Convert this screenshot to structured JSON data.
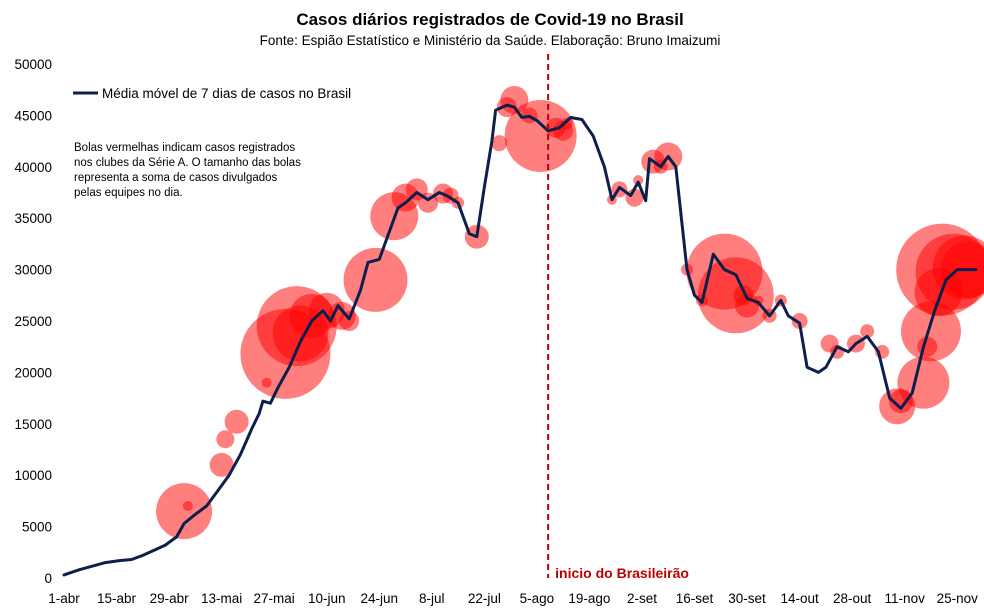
{
  "chart_data": {
    "type": "line",
    "title": "Casos diários registrados de Covid-19 no Brasil",
    "subtitle": "Fonte: Espião Estatístico e Ministério da Saúde. Elaboração: Bruno Imaizumi",
    "legend_position": "top-left",
    "grid": false,
    "ylim": [
      0,
      50000
    ],
    "y_ticks": [
      0,
      5000,
      10000,
      15000,
      20000,
      25000,
      30000,
      35000,
      40000,
      45000,
      50000
    ],
    "x_range": [
      "2020-04-01",
      "2020-11-30"
    ],
    "x_ticks": [
      {
        "date": "2020-04-01",
        "label": "1-abr"
      },
      {
        "date": "2020-04-15",
        "label": "15-abr"
      },
      {
        "date": "2020-04-29",
        "label": "29-abr"
      },
      {
        "date": "2020-05-13",
        "label": "13-mai"
      },
      {
        "date": "2020-05-27",
        "label": "27-mai"
      },
      {
        "date": "2020-06-10",
        "label": "10-jun"
      },
      {
        "date": "2020-06-24",
        "label": "24-jun"
      },
      {
        "date": "2020-07-08",
        "label": "8-jul"
      },
      {
        "date": "2020-07-22",
        "label": "22-jul"
      },
      {
        "date": "2020-08-05",
        "label": "5-ago"
      },
      {
        "date": "2020-08-19",
        "label": "19-ago"
      },
      {
        "date": "2020-09-02",
        "label": "2-set"
      },
      {
        "date": "2020-09-16",
        "label": "16-set"
      },
      {
        "date": "2020-09-30",
        "label": "30-set"
      },
      {
        "date": "2020-10-14",
        "label": "14-out"
      },
      {
        "date": "2020-10-28",
        "label": "28-out"
      },
      {
        "date": "2020-11-11",
        "label": "11-nov"
      },
      {
        "date": "2020-11-25",
        "label": "25-nov"
      }
    ],
    "series": [
      {
        "name": "Média móvel de 7 dias de casos no Brasil",
        "color": "#0d1f4c",
        "points": [
          [
            "2020-04-01",
            300
          ],
          [
            "2020-04-05",
            800
          ],
          [
            "2020-04-09",
            1200
          ],
          [
            "2020-04-12",
            1500
          ],
          [
            "2020-04-16",
            1700
          ],
          [
            "2020-04-19",
            1800
          ],
          [
            "2020-04-22",
            2200
          ],
          [
            "2020-04-25",
            2700
          ],
          [
            "2020-04-28",
            3200
          ],
          [
            "2020-05-01",
            4000
          ],
          [
            "2020-05-03",
            5300
          ],
          [
            "2020-05-06",
            6200
          ],
          [
            "2020-05-09",
            7000
          ],
          [
            "2020-05-12",
            8500
          ],
          [
            "2020-05-15",
            10000
          ],
          [
            "2020-05-18",
            12000
          ],
          [
            "2020-05-21",
            14500
          ],
          [
            "2020-05-23",
            16000
          ],
          [
            "2020-05-24",
            17200
          ],
          [
            "2020-05-26",
            17000
          ],
          [
            "2020-05-28",
            18500
          ],
          [
            "2020-05-31",
            20500
          ],
          [
            "2020-06-03",
            23000
          ],
          [
            "2020-06-06",
            25000
          ],
          [
            "2020-06-09",
            26000
          ],
          [
            "2020-06-11",
            25000
          ],
          [
            "2020-06-13",
            26500
          ],
          [
            "2020-06-16",
            25200
          ],
          [
            "2020-06-19",
            28000
          ],
          [
            "2020-06-21",
            30700
          ],
          [
            "2020-06-24",
            31000
          ],
          [
            "2020-06-27",
            34000
          ],
          [
            "2020-06-29",
            36000
          ],
          [
            "2020-07-01",
            36500
          ],
          [
            "2020-07-04",
            37500
          ],
          [
            "2020-07-07",
            36800
          ],
          [
            "2020-07-10",
            37500
          ],
          [
            "2020-07-12",
            37200
          ],
          [
            "2020-07-15",
            36500
          ],
          [
            "2020-07-18",
            33500
          ],
          [
            "2020-07-20",
            33200
          ],
          [
            "2020-07-22",
            38000
          ],
          [
            "2020-07-24",
            42500
          ],
          [
            "2020-07-25",
            45500
          ],
          [
            "2020-07-28",
            46000
          ],
          [
            "2020-07-30",
            45800
          ],
          [
            "2020-08-01",
            44800
          ],
          [
            "2020-08-03",
            44900
          ],
          [
            "2020-08-05",
            44500
          ],
          [
            "2020-08-08",
            43500
          ],
          [
            "2020-08-11",
            43800
          ],
          [
            "2020-08-14",
            44800
          ],
          [
            "2020-08-17",
            44600
          ],
          [
            "2020-08-20",
            43000
          ],
          [
            "2020-08-23",
            40000
          ],
          [
            "2020-08-25",
            36800
          ],
          [
            "2020-08-27",
            38000
          ],
          [
            "2020-08-30",
            37200
          ],
          [
            "2020-09-01",
            38500
          ],
          [
            "2020-09-03",
            36700
          ],
          [
            "2020-09-04",
            40800
          ],
          [
            "2020-09-07",
            40000
          ],
          [
            "2020-09-09",
            41000
          ],
          [
            "2020-09-11",
            40000
          ],
          [
            "2020-09-14",
            30000
          ],
          [
            "2020-09-16",
            27500
          ],
          [
            "2020-09-18",
            26800
          ],
          [
            "2020-09-21",
            31500
          ],
          [
            "2020-09-24",
            30000
          ],
          [
            "2020-09-27",
            29500
          ],
          [
            "2020-09-30",
            27200
          ],
          [
            "2020-10-03",
            26800
          ],
          [
            "2020-10-06",
            25500
          ],
          [
            "2020-10-09",
            27000
          ],
          [
            "2020-10-11",
            25500
          ],
          [
            "2020-10-14",
            24800
          ],
          [
            "2020-10-16",
            20500
          ],
          [
            "2020-10-19",
            20000
          ],
          [
            "2020-10-21",
            20500
          ],
          [
            "2020-10-24",
            22500
          ],
          [
            "2020-10-27",
            22000
          ],
          [
            "2020-10-29",
            22800
          ],
          [
            "2020-11-01",
            23500
          ],
          [
            "2020-11-04",
            22000
          ],
          [
            "2020-11-07",
            17500
          ],
          [
            "2020-11-10",
            16500
          ],
          [
            "2020-11-13",
            18000
          ],
          [
            "2020-11-16",
            22500
          ],
          [
            "2020-11-19",
            26000
          ],
          [
            "2020-11-22",
            29000
          ],
          [
            "2020-11-25",
            30000
          ],
          [
            "2020-11-30",
            30000
          ]
        ]
      }
    ],
    "bubbles_color": "#ff0000",
    "bubbles": [
      {
        "date": "2020-05-03",
        "value": 6500,
        "size": 28
      },
      {
        "date": "2020-05-04",
        "value": 7000,
        "size": 5
      },
      {
        "date": "2020-05-13",
        "value": 11000,
        "size": 12
      },
      {
        "date": "2020-05-14",
        "value": 13500,
        "size": 9
      },
      {
        "date": "2020-05-17",
        "value": 15200,
        "size": 12
      },
      {
        "date": "2020-05-25",
        "value": 19000,
        "size": 5
      },
      {
        "date": "2020-05-30",
        "value": 21800,
        "size": 45
      },
      {
        "date": "2020-06-02",
        "value": 24500,
        "size": 40
      },
      {
        "date": "2020-06-03",
        "value": 23800,
        "size": 28
      },
      {
        "date": "2020-06-06",
        "value": 25500,
        "size": 22
      },
      {
        "date": "2020-06-10",
        "value": 26000,
        "size": 18
      },
      {
        "date": "2020-06-14",
        "value": 25500,
        "size": 14
      },
      {
        "date": "2020-06-16",
        "value": 25000,
        "size": 10
      },
      {
        "date": "2020-06-23",
        "value": 29000,
        "size": 32
      },
      {
        "date": "2020-06-28",
        "value": 35200,
        "size": 24
      },
      {
        "date": "2020-07-01",
        "value": 37000,
        "size": 14
      },
      {
        "date": "2020-07-04",
        "value": 37800,
        "size": 11
      },
      {
        "date": "2020-07-07",
        "value": 36500,
        "size": 10
      },
      {
        "date": "2020-07-11",
        "value": 37400,
        "size": 10
      },
      {
        "date": "2020-07-13",
        "value": 37200,
        "size": 8
      },
      {
        "date": "2020-07-15",
        "value": 36500,
        "size": 6
      },
      {
        "date": "2020-07-20",
        "value": 33200,
        "size": 12
      },
      {
        "date": "2020-07-26",
        "value": 42300,
        "size": 8
      },
      {
        "date": "2020-07-28",
        "value": 45800,
        "size": 10
      },
      {
        "date": "2020-07-30",
        "value": 46500,
        "size": 14
      },
      {
        "date": "2020-08-03",
        "value": 45000,
        "size": 8
      },
      {
        "date": "2020-08-06",
        "value": 43000,
        "size": 36
      },
      {
        "date": "2020-08-10",
        "value": 43800,
        "size": 10
      },
      {
        "date": "2020-08-12",
        "value": 43500,
        "size": 10
      },
      {
        "date": "2020-08-13",
        "value": 44200,
        "size": 6
      },
      {
        "date": "2020-08-25",
        "value": 36800,
        "size": 5
      },
      {
        "date": "2020-08-27",
        "value": 37800,
        "size": 8
      },
      {
        "date": "2020-08-31",
        "value": 37000,
        "size": 9
      },
      {
        "date": "2020-09-01",
        "value": 38700,
        "size": 5
      },
      {
        "date": "2020-09-05",
        "value": 40500,
        "size": 12
      },
      {
        "date": "2020-09-07",
        "value": 40000,
        "size": 7
      },
      {
        "date": "2020-09-09",
        "value": 41000,
        "size": 14
      },
      {
        "date": "2020-09-14",
        "value": 30000,
        "size": 6
      },
      {
        "date": "2020-09-18",
        "value": 27000,
        "size": 6
      },
      {
        "date": "2020-09-24",
        "value": 29800,
        "size": 38
      },
      {
        "date": "2020-09-27",
        "value": 27500,
        "size": 38
      },
      {
        "date": "2020-09-29",
        "value": 27500,
        "size": 10
      },
      {
        "date": "2020-09-30",
        "value": 26500,
        "size": 12
      },
      {
        "date": "2020-10-03",
        "value": 27000,
        "size": 5
      },
      {
        "date": "2020-10-06",
        "value": 25500,
        "size": 7
      },
      {
        "date": "2020-10-09",
        "value": 27000,
        "size": 6
      },
      {
        "date": "2020-10-14",
        "value": 25000,
        "size": 8
      },
      {
        "date": "2020-10-22",
        "value": 22800,
        "size": 9
      },
      {
        "date": "2020-10-24",
        "value": 22000,
        "size": 7
      },
      {
        "date": "2020-10-29",
        "value": 22800,
        "size": 9
      },
      {
        "date": "2020-11-01",
        "value": 24000,
        "size": 7
      },
      {
        "date": "2020-11-05",
        "value": 22000,
        "size": 7
      },
      {
        "date": "2020-11-09",
        "value": 16700,
        "size": 18
      },
      {
        "date": "2020-11-10",
        "value": 17200,
        "size": 12
      },
      {
        "date": "2020-11-16",
        "value": 19000,
        "size": 26
      },
      {
        "date": "2020-11-17",
        "value": 22500,
        "size": 10
      },
      {
        "date": "2020-11-18",
        "value": 24000,
        "size": 30
      },
      {
        "date": "2020-11-20",
        "value": 27800,
        "size": 24
      },
      {
        "date": "2020-11-21",
        "value": 30000,
        "size": 46
      },
      {
        "date": "2020-11-24",
        "value": 29800,
        "size": 38
      },
      {
        "date": "2020-11-27",
        "value": 30200,
        "size": 32
      },
      {
        "date": "2020-11-28",
        "value": 30000,
        "size": 28
      }
    ],
    "annotations": {
      "note": [
        "Bolas vermelhas indicam casos registrados",
        "nos clubes da Série A. O tamanho das bolas",
        "representa a soma de casos divulgados",
        "pelas equipes no dia."
      ],
      "vertical_line": {
        "date": "2020-08-08",
        "label": "inicio do Brasileirão",
        "color": "#c00000"
      }
    }
  }
}
